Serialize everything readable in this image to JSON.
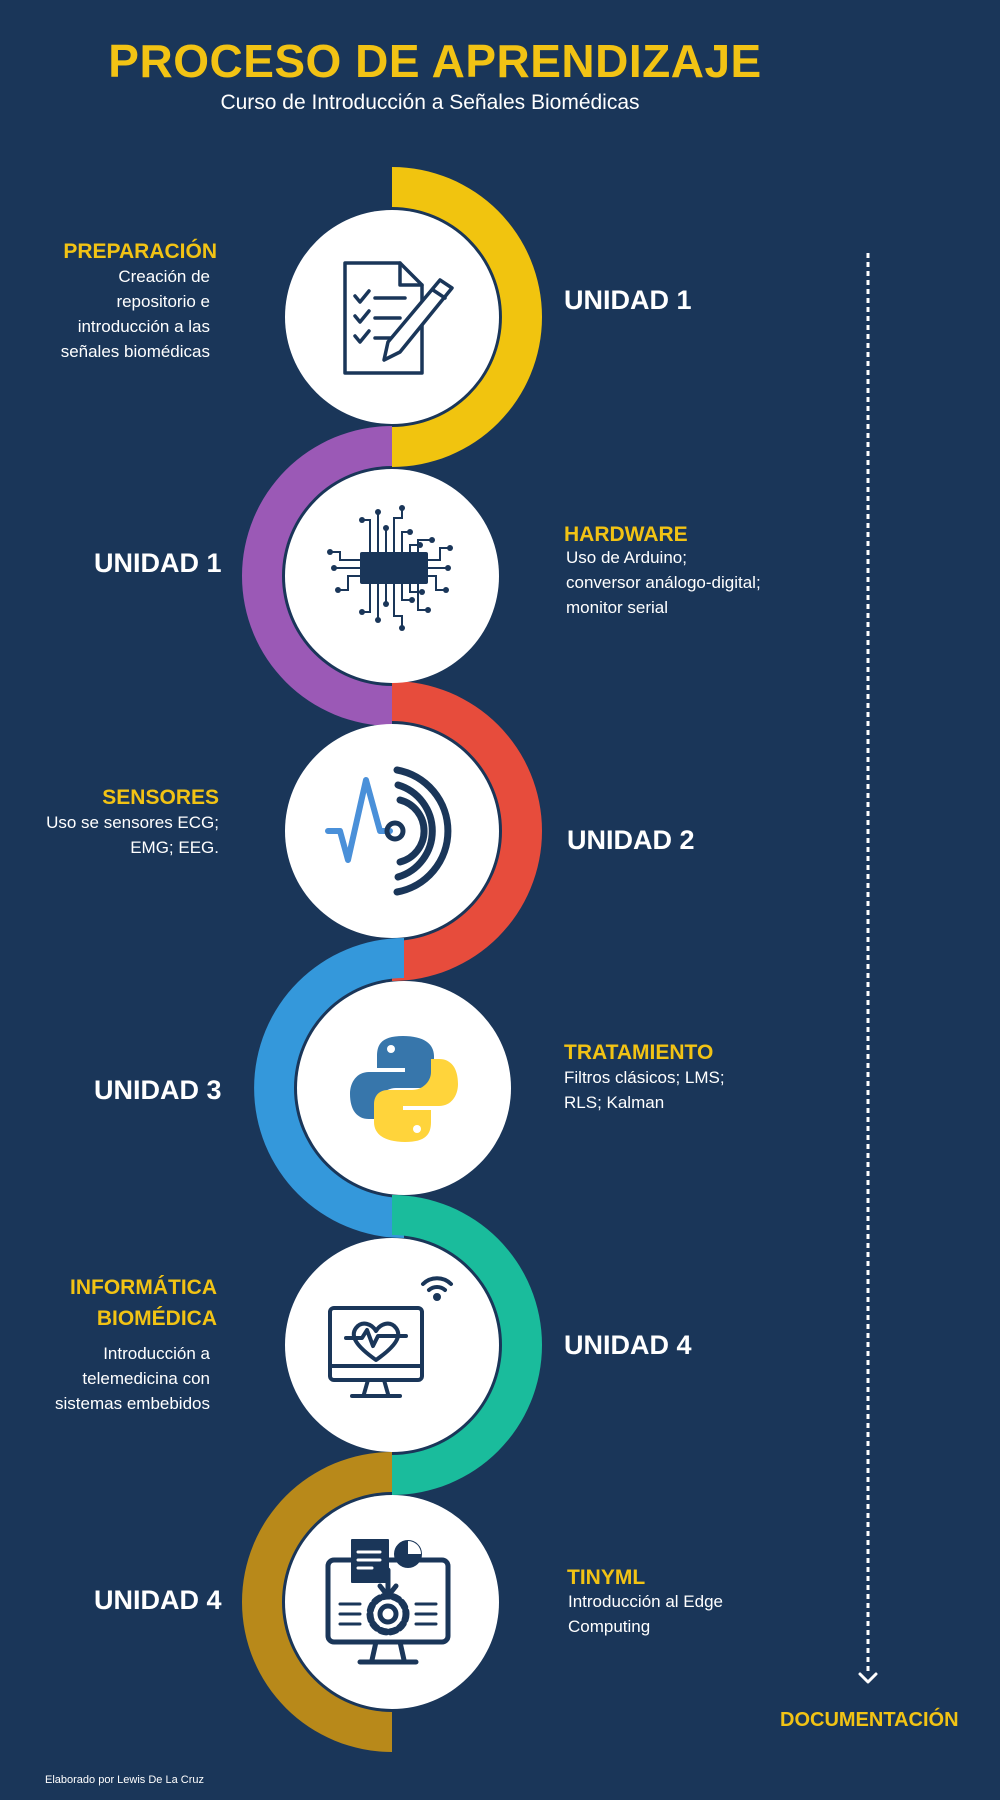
{
  "header": {
    "title": "PROCESO DE APRENDIZAJE",
    "subtitle": "Curso de Introducción a Señales Biomédicas"
  },
  "steps": [
    {
      "heading": "PREPARACIÓN",
      "description": "Creación de repositorio e introducción a las señales biomédicas",
      "unit": "UNIDAD 1",
      "color": "#f1c40f",
      "icon": "checklist-pencil-icon"
    },
    {
      "heading": "HARDWARE",
      "description": "Uso de Arduino; conversor análogo-digital; monitor serial",
      "unit": "UNIDAD 1",
      "color": "#9b59b6",
      "icon": "microchip-icon"
    },
    {
      "heading": "SENSORES",
      "description": "Uso se sensores ECG; EMG; EEG.",
      "unit": "UNIDAD 2",
      "color": "#e74c3c",
      "icon": "signal-waves-icon"
    },
    {
      "heading": "TRATAMIENTO",
      "description": "Filtros clásicos; LMS; RLS; Kalman",
      "unit": "UNIDAD 3",
      "color": "#3498db",
      "icon": "python-logo-icon"
    },
    {
      "heading": "INFORMÁTICA BIOMÉDICA",
      "description": "Introducción a telemedicina con sistemas embebidos",
      "unit": "UNIDAD 4",
      "color": "#1abc9c",
      "icon": "monitor-heart-wifi-icon"
    },
    {
      "heading": "TINYML",
      "description": "Introducción al Edge Computing",
      "unit": "UNIDAD 4",
      "color": "#b8891a",
      "icon": "computer-gear-icon"
    }
  ],
  "timeline": {
    "label": "DOCUMENTACIÓN"
  },
  "footer": {
    "credit": "Elaborado por Lewis De La Cruz"
  }
}
